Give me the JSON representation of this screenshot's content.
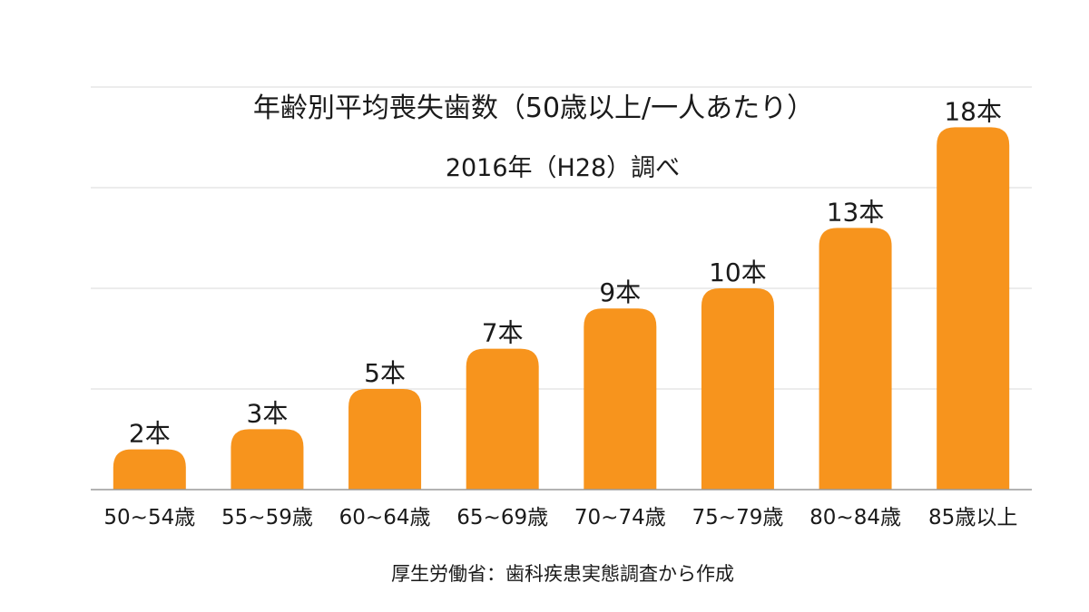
{
  "chart_data": {
    "type": "bar",
    "title": "年齢別平均喪失歯数（50歳以上/一人あたり）",
    "subtitle": "2016年（H28）調べ",
    "categories": [
      "50~54歳",
      "55~59歳",
      "60~64歳",
      "65~69歳",
      "70~74歳",
      "75~79歳",
      "80~84歳",
      "85歳以上"
    ],
    "values": [
      2,
      3,
      5,
      7,
      9,
      10,
      13,
      18
    ],
    "value_labels": [
      "2本",
      "3本",
      "5本",
      "7本",
      "9本",
      "10本",
      "13本",
      "18本"
    ],
    "ylim": [
      0,
      20
    ],
    "grid": true,
    "y_tick_labels_shown": false,
    "legend": "none",
    "bar_color": "#F7941D",
    "source": "厚生労働省：歯科疾患実態調査から作成"
  }
}
